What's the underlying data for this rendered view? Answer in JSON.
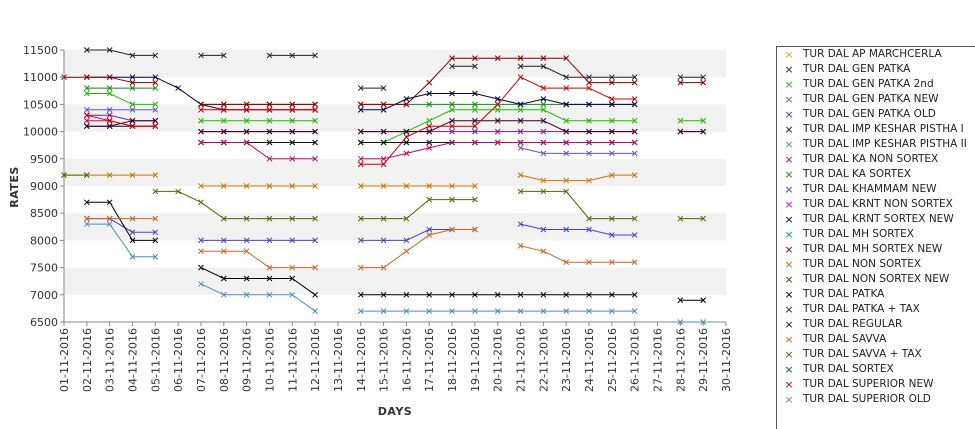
{
  "chart_data": {
    "type": "line",
    "xlabel": "DAYS",
    "ylabel": "RATES",
    "ylim": [
      6500,
      11500
    ],
    "yticks": [
      6500,
      7000,
      7500,
      8000,
      8500,
      9000,
      9500,
      10000,
      10500,
      11000,
      11500
    ],
    "x": [
      "01-11-2016",
      "02-11-2016",
      "03-11-2016",
      "04-11-2016",
      "05-11-2016",
      "06-11-2016",
      "07-11-2016",
      "08-11-2016",
      "09-11-2016",
      "10-11-2016",
      "11-11-2016",
      "12-11-2016",
      "13-11-2016",
      "14-11-2016",
      "15-11-2016",
      "16-11-2016",
      "17-11-2016",
      "18-11-2016",
      "19-11-2016",
      "20-11-2016",
      "21-11-2016",
      "22-11-2016",
      "23-11-2016",
      "24-11-2016",
      "25-11-2016",
      "26-11-2016",
      "27-11-2016",
      "28-11-2016",
      "29-11-2016",
      "30-11-2016"
    ],
    "grid": "horizontal bands",
    "legend": "right",
    "series": [
      {
        "name": "TUR DAL AP MARCHCERLA",
        "color": "#d4b000",
        "values": [
          null,
          null,
          null,
          null,
          null,
          null,
          null,
          null,
          null,
          null,
          null,
          null,
          null,
          null,
          null,
          null,
          null,
          null,
          null,
          null,
          null,
          null,
          null,
          null,
          null,
          null,
          null,
          null,
          null,
          null
        ]
      },
      {
        "name": "TUR DAL GEN PATKA",
        "color": "#222222",
        "values": [
          null,
          11500,
          11500,
          11400,
          11400,
          null,
          11400,
          11400,
          null,
          11400,
          11400,
          11400,
          null,
          10800,
          10800,
          null,
          null,
          11200,
          11200,
          null,
          11200,
          11200,
          11000,
          11000,
          11000,
          11000,
          null,
          11000,
          11000,
          null
        ]
      },
      {
        "name": "TUR DAL GEN PATKA 2nd",
        "color": "#22bb00",
        "values": [
          null,
          10700,
          10700,
          10500,
          10500,
          null,
          10200,
          10200,
          10200,
          10200,
          10200,
          10200,
          null,
          9800,
          9800,
          10000,
          10200,
          10400,
          10400,
          10400,
          10400,
          10400,
          10200,
          10200,
          10200,
          10200,
          null,
          10200,
          10200,
          null
        ]
      },
      {
        "name": "TUR DAL GEN PATKA NEW",
        "color": "#6655cc",
        "values": [
          null,
          10400,
          10400,
          10400,
          10400,
          null,
          9800,
          9800,
          9800,
          9800,
          9800,
          9800,
          null,
          9800,
          9800,
          9800,
          9800,
          9800,
          9800,
          null,
          9700,
          9600,
          9600,
          9600,
          9600,
          9600,
          null,
          null,
          null,
          null
        ]
      },
      {
        "name": "TUR DAL GEN PATKA OLD",
        "color": "#7a1a99",
        "values": [
          null,
          10300,
          10300,
          10200,
          10200,
          null,
          10000,
          10000,
          10000,
          10000,
          10000,
          10000,
          null,
          10000,
          10000,
          10000,
          10000,
          10000,
          10000,
          10000,
          10000,
          10000,
          10000,
          10000,
          10000,
          10000,
          null,
          10000,
          10000,
          null
        ]
      },
      {
        "name": "TUR DAL IMP KESHAR PISTHA I",
        "color": "#111111",
        "values": [
          null,
          10100,
          10100,
          10100,
          10100,
          null,
          9800,
          9800,
          9800,
          9800,
          9800,
          9800,
          null,
          9800,
          9800,
          9800,
          9800,
          9800,
          9800,
          9800,
          9800,
          9800,
          9800,
          9800,
          9800,
          9800,
          null,
          null,
          null,
          null
        ]
      },
      {
        "name": "TUR DAL IMP KESHAR PISTHA II",
        "color": "#4a8fc0",
        "values": [
          null,
          8300,
          8300,
          7700,
          7700,
          null,
          7200,
          7000,
          7000,
          7000,
          7000,
          6700,
          null,
          6700,
          6700,
          6700,
          6700,
          6700,
          6700,
          6700,
          6700,
          6700,
          6700,
          6700,
          6700,
          6700,
          null,
          6500,
          6500,
          null
        ]
      },
      {
        "name": "TUR DAL KA NON SORTEX",
        "color": "#cc0066",
        "values": [
          null,
          10200,
          10200,
          10100,
          10100,
          null,
          9800,
          9800,
          9800,
          9500,
          9500,
          9500,
          null,
          9500,
          9500,
          9600,
          9700,
          9800,
          9800,
          9800,
          9800,
          9800,
          9800,
          9800,
          9800,
          9800,
          null,
          null,
          null,
          null
        ]
      },
      {
        "name": "TUR DAL KA SORTEX",
        "color": "#118811",
        "values": [
          null,
          10800,
          10800,
          10800,
          10800,
          null,
          10500,
          10500,
          10500,
          10500,
          10500,
          10500,
          null,
          10500,
          10500,
          10500,
          10500,
          10500,
          10500,
          10500,
          10500,
          10500,
          10500,
          10500,
          10500,
          10500,
          null,
          null,
          null,
          null
        ]
      },
      {
        "name": "TUR DAL KHAMMAM NEW",
        "color": "#4444cc",
        "values": [
          null,
          8400,
          8400,
          8150,
          8150,
          null,
          8000,
          8000,
          8000,
          8000,
          8000,
          8000,
          null,
          8000,
          8000,
          8000,
          8200,
          8200,
          8200,
          null,
          8300,
          8200,
          8200,
          8200,
          8100,
          8100,
          null,
          null,
          null,
          null
        ]
      },
      {
        "name": "TUR DAL KRNT NON SORTEX",
        "color": "#dd00dd",
        "values": [
          null,
          null,
          null,
          null,
          null,
          null,
          null,
          null,
          null,
          null,
          null,
          null,
          null,
          null,
          null,
          null,
          null,
          null,
          null,
          null,
          null,
          null,
          null,
          null,
          null,
          null,
          null,
          null,
          null,
          null
        ]
      },
      {
        "name": "TUR DAL KRNT SORTEX NEW",
        "color": "#000044",
        "values": [
          null,
          11000,
          11000,
          11000,
          11000,
          10800,
          10500,
          10400,
          10400,
          10400,
          10400,
          10400,
          null,
          10400,
          10400,
          10600,
          10700,
          10700,
          10700,
          10600,
          10500,
          10600,
          10500,
          10500,
          10500,
          10500,
          null,
          null,
          null,
          null
        ]
      },
      {
        "name": "TUR DAL MH SORTEX",
        "color": "#009999",
        "values": [
          null,
          null,
          null,
          null,
          null,
          null,
          null,
          null,
          null,
          null,
          null,
          null,
          null,
          null,
          null,
          null,
          null,
          null,
          null,
          null,
          null,
          null,
          null,
          null,
          null,
          null,
          null,
          null,
          null,
          null
        ]
      },
      {
        "name": "TUR DAL MH SORTEX NEW",
        "color": "#880000",
        "values": [
          11000,
          11000,
          11000,
          10900,
          10900,
          null,
          10500,
          10500,
          10500,
          10500,
          10500,
          10500,
          null,
          10500,
          10500,
          10500,
          10900,
          11350,
          11350,
          11350,
          11350,
          11350,
          11350,
          10900,
          10900,
          10900,
          null,
          10900,
          10900,
          null
        ]
      },
      {
        "name": "TUR DAL NON SORTEX",
        "color": "#cc7700",
        "values": [
          9200,
          9200,
          9200,
          9200,
          9200,
          null,
          9000,
          9000,
          9000,
          9000,
          9000,
          9000,
          null,
          9000,
          9000,
          9000,
          9000,
          9000,
          9000,
          null,
          9200,
          9100,
          9100,
          9100,
          9200,
          9200,
          null,
          null,
          null,
          null
        ]
      },
      {
        "name": "TUR DAL NON SORTEX NEW",
        "color": "#553300",
        "values": [
          null,
          null,
          null,
          null,
          null,
          null,
          null,
          null,
          null,
          null,
          null,
          null,
          null,
          null,
          null,
          null,
          null,
          null,
          null,
          null,
          null,
          null,
          null,
          null,
          null,
          null,
          null,
          null,
          null,
          null
        ]
      },
      {
        "name": "TUR DAL PATKA",
        "color": "#000000",
        "values": [
          null,
          8700,
          8700,
          8000,
          8000,
          null,
          7500,
          7300,
          7300,
          7300,
          7300,
          7000,
          null,
          7000,
          7000,
          7000,
          7000,
          7000,
          7000,
          7000,
          7000,
          7000,
          7000,
          7000,
          7000,
          7000,
          null,
          6900,
          6900,
          null
        ]
      },
      {
        "name": "TUR DAL PATKA + TAX",
        "color": "#330033",
        "values": [
          null,
          null,
          null,
          null,
          null,
          null,
          null,
          null,
          null,
          null,
          null,
          null,
          null,
          null,
          null,
          null,
          null,
          null,
          null,
          null,
          null,
          null,
          null,
          null,
          null,
          null,
          null,
          null,
          null,
          null
        ]
      },
      {
        "name": "TUR DAL REGULAR",
        "color": "#330022",
        "values": [
          null,
          10100,
          10100,
          10200,
          10200,
          null,
          10000,
          10000,
          10000,
          10000,
          10000,
          10000,
          null,
          10000,
          10000,
          10000,
          10000,
          10200,
          10200,
          10200,
          10200,
          10200,
          10000,
          10000,
          10000,
          10000,
          null,
          10000,
          10000,
          null
        ]
      },
      {
        "name": "TUR DAL SAVVA",
        "color": "#cc6622",
        "values": [
          null,
          8400,
          8400,
          8400,
          8400,
          null,
          7800,
          7800,
          7800,
          7500,
          7500,
          7500,
          null,
          7500,
          7500,
          7800,
          8100,
          8200,
          8200,
          null,
          7900,
          7800,
          7600,
          7600,
          7600,
          7600,
          null,
          null,
          null,
          null
        ]
      },
      {
        "name": "TUR DAL SAVVA + TAX",
        "color": "#556600",
        "values": [
          9200,
          9200,
          null,
          null,
          8900,
          8900,
          8700,
          8400,
          8400,
          8400,
          8400,
          8400,
          null,
          8400,
          8400,
          8400,
          8750,
          8750,
          8750,
          null,
          8900,
          8900,
          8900,
          8400,
          8400,
          8400,
          null,
          8400,
          8400,
          null
        ]
      },
      {
        "name": "TUR DAL SORTEX",
        "color": "#006622",
        "values": [
          null,
          null,
          null,
          null,
          null,
          null,
          null,
          null,
          null,
          null,
          null,
          null,
          null,
          null,
          null,
          null,
          null,
          null,
          null,
          null,
          null,
          null,
          null,
          null,
          null,
          null,
          null,
          null,
          null,
          null
        ]
      },
      {
        "name": "TUR DAL SUPERIOR NEW",
        "color": "#cc0000",
        "values": [
          null,
          10300,
          10200,
          10100,
          10100,
          null,
          10400,
          10400,
          10400,
          10400,
          10400,
          10400,
          null,
          9400,
          9400,
          9900,
          10100,
          10100,
          10100,
          10500,
          11000,
          10800,
          10800,
          10800,
          10600,
          10600,
          null,
          null,
          null,
          null
        ]
      },
      {
        "name": "TUR DAL SUPERIOR OLD",
        "color": "#888888",
        "values": [
          null,
          null,
          null,
          null,
          null,
          null,
          null,
          null,
          null,
          null,
          null,
          null,
          null,
          null,
          null,
          null,
          null,
          null,
          null,
          null,
          null,
          null,
          null,
          null,
          null,
          null,
          null,
          null,
          null,
          null
        ]
      }
    ]
  }
}
